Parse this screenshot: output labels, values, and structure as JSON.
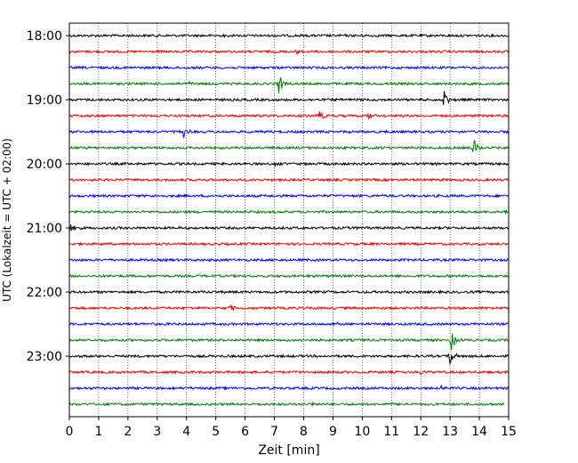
{
  "chart_data": {
    "type": "line",
    "title": "",
    "xlabel": "Zeit  [min]",
    "ylabel": "UTC (Lokalzeit = UTC + 02:00)",
    "xlim": [
      0,
      15
    ],
    "x_ticks": [
      "0",
      "1",
      "2",
      "3",
      "4",
      "5",
      "6",
      "7",
      "8",
      "9",
      "10",
      "11",
      "12",
      "13",
      "14",
      "15"
    ],
    "y_tick_labels": [
      "18:00",
      "19:00",
      "20:00",
      "21:00",
      "22:00",
      "23:00"
    ],
    "grid": "vertical dotted lines at each minute",
    "line_colors": [
      "#000000",
      "#ff0000",
      "#0000ff",
      "#008000"
    ],
    "series": [
      {
        "start": "18:00",
        "noise": 1.0,
        "events": [
          {
            "t": 5.3,
            "amp": 2
          }
        ]
      },
      {
        "start": "18:15",
        "noise": 1.0,
        "events": [
          {
            "t": 7.7,
            "amp": 2.5
          }
        ]
      },
      {
        "start": "18:30",
        "noise": 1.0,
        "events": []
      },
      {
        "start": "18:45",
        "noise": 1.0,
        "events": [
          {
            "t": 7.15,
            "amp": 13
          },
          {
            "t": 4.1,
            "amp": 2
          }
        ]
      },
      {
        "start": "19:00",
        "noise": 1.0,
        "events": [
          {
            "t": 12.8,
            "amp": 10
          }
        ]
      },
      {
        "start": "19:15",
        "noise": 1.0,
        "events": [
          {
            "t": 8.55,
            "amp": 9
          },
          {
            "t": 10.2,
            "amp": 4
          }
        ]
      },
      {
        "start": "19:30",
        "noise": 1.0,
        "events": [
          {
            "t": 3.9,
            "amp": 6
          }
        ]
      },
      {
        "start": "19:45",
        "noise": 1.0,
        "events": [
          {
            "t": 13.8,
            "amp": 13
          }
        ]
      },
      {
        "start": "20:00",
        "noise": 1.0,
        "events": [
          {
            "t": 7.0,
            "amp": 3
          }
        ]
      },
      {
        "start": "20:15",
        "noise": 1.0,
        "events": []
      },
      {
        "start": "20:30",
        "noise": 1.0,
        "events": []
      },
      {
        "start": "20:45",
        "noise": 1.0,
        "events": [
          {
            "t": 14.9,
            "amp": 3
          }
        ]
      },
      {
        "start": "21:00",
        "noise": 1.0,
        "events": [
          {
            "t": 0.05,
            "amp": 5
          },
          {
            "t": 9.8,
            "amp": 2
          }
        ]
      },
      {
        "start": "21:15",
        "noise": 1.0,
        "events": []
      },
      {
        "start": "21:30",
        "noise": 1.0,
        "events": []
      },
      {
        "start": "21:45",
        "noise": 1.0,
        "events": []
      },
      {
        "start": "22:00",
        "noise": 1.0,
        "events": []
      },
      {
        "start": "22:15",
        "noise": 1.0,
        "events": [
          {
            "t": 5.5,
            "amp": 4
          },
          {
            "t": 8.1,
            "amp": 2
          }
        ]
      },
      {
        "start": "22:30",
        "noise": 1.0,
        "events": [
          {
            "t": 9.0,
            "amp": 3
          }
        ]
      },
      {
        "start": "22:45",
        "noise": 1.0,
        "events": [
          {
            "t": 13.05,
            "amp": 11
          }
        ]
      },
      {
        "start": "23:00",
        "noise": 1.0,
        "events": [
          {
            "t": 13.0,
            "amp": 11
          }
        ]
      },
      {
        "start": "23:15",
        "noise": 1.0,
        "events": [
          {
            "t": 12.0,
            "amp": 3
          }
        ]
      },
      {
        "start": "23:30",
        "noise": 1.0,
        "events": [
          {
            "t": 3.5,
            "amp": 4
          },
          {
            "t": 12.65,
            "amp": 5
          }
        ]
      },
      {
        "start": "23:45",
        "noise": 1.0,
        "events": [
          {
            "t": 8.3,
            "amp": 2.5
          }
        ],
        "end": 14.85
      }
    ]
  }
}
